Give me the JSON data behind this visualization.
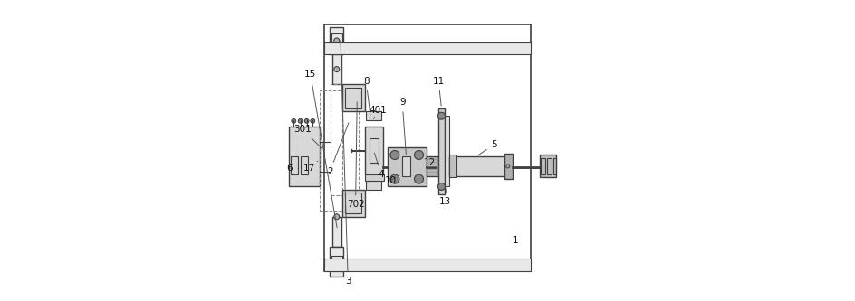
{
  "bg_color": "#ffffff",
  "line_color": "#404040",
  "line_color_light": "#888888",
  "fig_width": 9.45,
  "fig_height": 3.33
}
